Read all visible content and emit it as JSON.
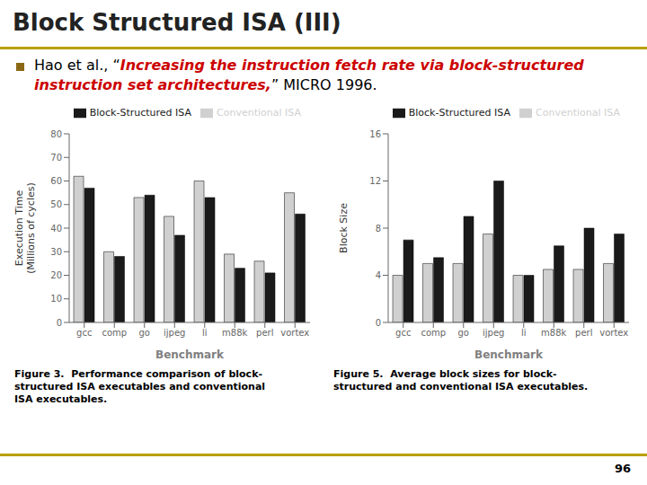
{
  "title": "Block Structured ISA (III)",
  "subtitle": [
    {
      "text": "Hao et al., “",
      "color": "#000000"
    },
    {
      "text": "Increasing the instruction fetch rate via block-structured instruction set architectures,",
      "color": "#cc0000"
    },
    {
      "text": "” MICRO 1996.",
      "color": "#000000"
    }
  ],
  "annotations": [
    "96"
  ],
  "chart_data": [
    {
      "type": "bar",
      "categories": [
        "gcc",
        "comp",
        "go",
        "ijpeg",
        "li",
        "m88k",
        "perl",
        "vortex"
      ],
      "series": [
        {
          "name": "Conventional ISA",
          "color": "#d0d0d0",
          "values": [
            62,
            30,
            53,
            45,
            60,
            29,
            26,
            55
          ]
        },
        {
          "name": "Block-Structured ISA",
          "color": "#1a1a1a",
          "values": [
            57,
            28,
            54,
            37,
            53,
            23,
            21,
            46
          ]
        }
      ],
      "xlabel": "Benchmark",
      "ylabel": "Execution Time\n(Millions of cycles)",
      "ylim": [
        0,
        80
      ],
      "yticks": [
        0,
        10,
        20,
        30,
        40,
        50,
        60,
        70,
        80
      ],
      "grid": false,
      "legend": "upper right",
      "annotations": [
        "Figure 3.  Performance comparison of block-",
        "structured ISA executables and conventional",
        "ISA executables."
      ]
    },
    {
      "type": "bar",
      "categories": [
        "gcc",
        "comp",
        "go",
        "ijpeg",
        "li",
        "m88k",
        "perl",
        "vortex"
      ],
      "series": [
        {
          "name": "Conventional ISA",
          "color": "#d0d0d0",
          "values": [
            4,
            5,
            5,
            7.5,
            4,
            4.5,
            4.5,
            5
          ]
        },
        {
          "name": "Block-Structured ISA",
          "color": "#1a1a1a",
          "values": [
            7,
            5.5,
            9,
            12,
            4,
            6.5,
            8,
            7.5
          ]
        }
      ],
      "xlabel": "Benchmark",
      "ylabel": "Block Size",
      "ylim": [
        0,
        16
      ],
      "yticks": [
        0,
        4,
        8,
        12,
        16
      ],
      "grid": false,
      "legend": "upper right",
      "annotations": [
        "Figure 5.  Average block sizes for block-",
        "structured and conventional ISA executables."
      ]
    }
  ]
}
